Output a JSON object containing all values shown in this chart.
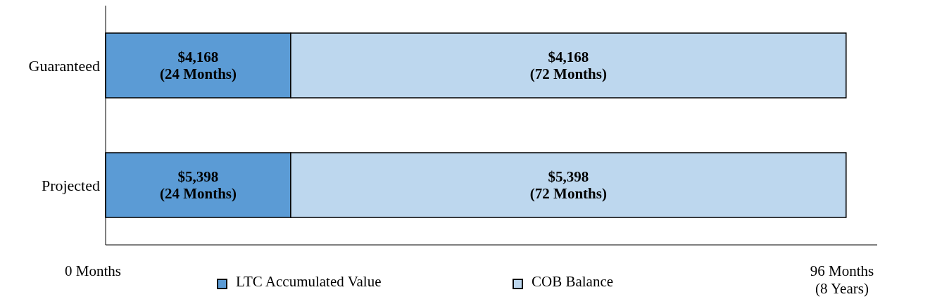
{
  "chart_data": {
    "type": "bar",
    "orientation": "horizontal",
    "stacked": true,
    "categories": [
      "Guaranteed",
      "Projected"
    ],
    "series": [
      {
        "name": "LTC Accumulated Value",
        "color": "#5b9bd5",
        "values": [
          24,
          24
        ],
        "value_labels": [
          "$4,168\n(24 Months)",
          "$5,398\n(24 Months)"
        ]
      },
      {
        "name": "COB Balance",
        "color": "#bdd7ee",
        "values": [
          72,
          72
        ],
        "value_labels": [
          "$4,168\n(72 Months)",
          "$5,398\n(72 Months)"
        ]
      }
    ],
    "annotations": [
      "0 Months",
      "96 Months\n(8 Years)"
    ],
    "grid": false,
    "legend": "bottom"
  }
}
